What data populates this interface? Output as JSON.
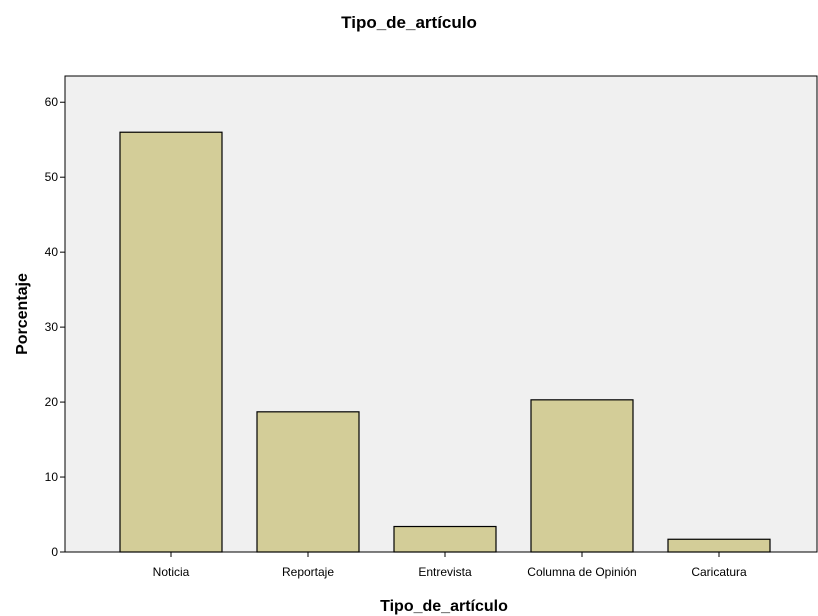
{
  "chart_data": {
    "type": "bar",
    "title": "Tipo_de_artículo",
    "xlabel": "Tipo_de_artículo",
    "ylabel": "Porcentaje",
    "categories": [
      "Noticia",
      "Reportaje",
      "Entrevista",
      "Columna de Opinión",
      "Caricatura"
    ],
    "values": [
      56.0,
      18.7,
      3.4,
      20.3,
      1.7
    ],
    "ylim": [
      0,
      63.5
    ],
    "yticks": [
      0,
      10,
      20,
      30,
      40,
      50,
      60
    ],
    "grid": false,
    "legend": "none",
    "colors": {
      "bar_fill": "#d3cd98",
      "bar_stroke": "#000000",
      "plot_background": "#f0f0f0",
      "axis": "#000000"
    }
  }
}
